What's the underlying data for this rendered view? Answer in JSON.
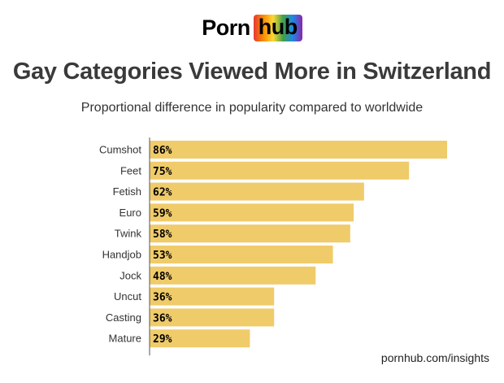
{
  "logo": {
    "left_text": "Porn",
    "right_text": "hub"
  },
  "title": "Gay Categories Viewed More in Switzerland",
  "subtitle": "Proportional difference in popularity compared to worldwide",
  "footer": "pornhub.com/insights",
  "colors": {
    "bar": "#f0cb6a",
    "axis": "#555555",
    "label": "#333333",
    "value_label": "#000000"
  },
  "chart_data": {
    "type": "bar",
    "orientation": "horizontal",
    "categories": [
      "Cumshot",
      "Feet",
      "Fetish",
      "Euro",
      "Twink",
      "Handjob",
      "Jock",
      "Uncut",
      "Casting",
      "Mature"
    ],
    "values": [
      86,
      75,
      62,
      59,
      58,
      53,
      48,
      36,
      36,
      29
    ],
    "value_labels": [
      "86%",
      "75%",
      "62%",
      "59%",
      "58%",
      "53%",
      "48%",
      "36%",
      "36%",
      "29%"
    ],
    "unit": "%",
    "xlim": [
      0,
      86
    ],
    "grid": false,
    "legend": "none"
  }
}
